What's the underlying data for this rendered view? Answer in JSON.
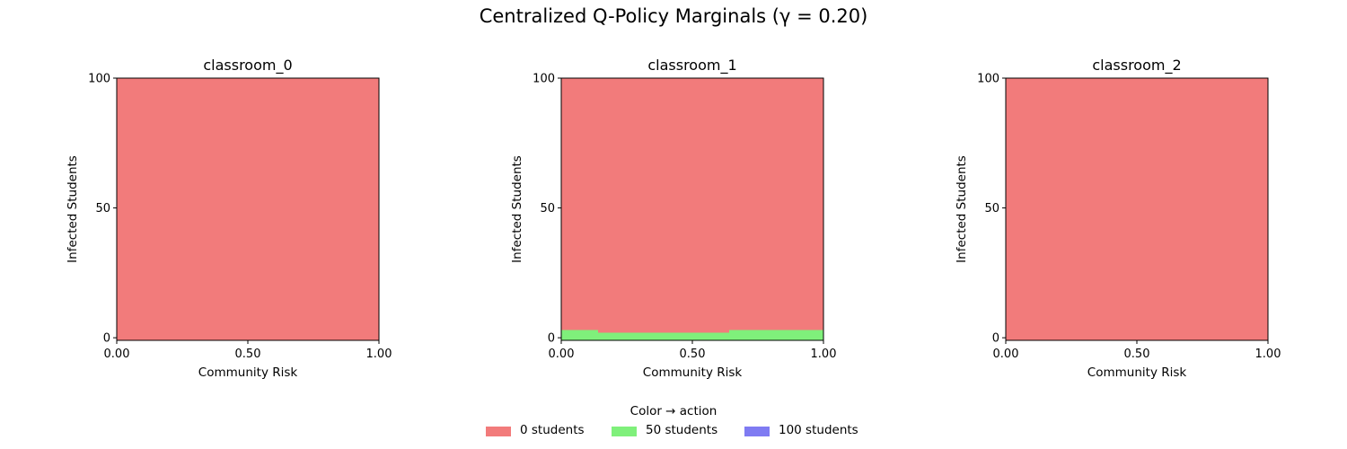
{
  "suptitle": "Centralized Q-Policy Marginals (γ = 0.20)",
  "colors": {
    "action_0": "#f27b7b",
    "action_50": "#7ff07b",
    "action_100": "#7f7bf2"
  },
  "legend": {
    "title": "Color → action",
    "placement": "bottom-center",
    "items": [
      {
        "label": "0 students",
        "color_key": "action_0"
      },
      {
        "label": "50 students",
        "color_key": "action_50"
      },
      {
        "label": "100 students",
        "color_key": "action_100"
      }
    ]
  },
  "chart_data": [
    {
      "type": "heatmap",
      "title": "classroom_0",
      "xlabel": "Community Risk",
      "ylabel": "Infected Students",
      "xlim": [
        0,
        1
      ],
      "ylim": [
        -1,
        100
      ],
      "xticks": [
        0,
        0.5,
        1
      ],
      "xtick_labels": [
        "0.00",
        "0.50",
        "1.00"
      ],
      "yticks": [
        0,
        50,
        100
      ],
      "ytick_labels": [
        "0",
        "50",
        "100"
      ],
      "grid": false,
      "regions": [
        {
          "action": "0 students",
          "x": [
            0,
            1
          ],
          "y": [
            -1,
            100
          ]
        }
      ]
    },
    {
      "type": "heatmap",
      "title": "classroom_1",
      "xlabel": "Community Risk",
      "ylabel": "Infected Students",
      "xlim": [
        0,
        1
      ],
      "ylim": [
        -1,
        100
      ],
      "xticks": [
        0,
        0.5,
        1
      ],
      "xtick_labels": [
        "0.00",
        "0.50",
        "1.00"
      ],
      "yticks": [
        0,
        50,
        100
      ],
      "ytick_labels": [
        "0",
        "50",
        "100"
      ],
      "grid": false,
      "regions": [
        {
          "action": "0 students",
          "x": [
            0,
            1
          ],
          "y": [
            -1,
            100
          ]
        },
        {
          "action": "50 students",
          "x": [
            0,
            0.14
          ],
          "y": [
            -1,
            3
          ]
        },
        {
          "action": "50 students",
          "x": [
            0.14,
            0.64
          ],
          "y": [
            -1,
            2
          ]
        },
        {
          "action": "50 students",
          "x": [
            0.64,
            1
          ],
          "y": [
            -1,
            3
          ]
        }
      ]
    },
    {
      "type": "heatmap",
      "title": "classroom_2",
      "xlabel": "Community Risk",
      "ylabel": "Infected Students",
      "xlim": [
        0,
        1
      ],
      "ylim": [
        -1,
        100
      ],
      "xticks": [
        0,
        0.5,
        1
      ],
      "xtick_labels": [
        "0.00",
        "0.50",
        "1.00"
      ],
      "yticks": [
        0,
        50,
        100
      ],
      "ytick_labels": [
        "0",
        "50",
        "100"
      ],
      "grid": false,
      "regions": [
        {
          "action": "0 students",
          "x": [
            0,
            1
          ],
          "y": [
            -1,
            100
          ]
        }
      ]
    }
  ]
}
